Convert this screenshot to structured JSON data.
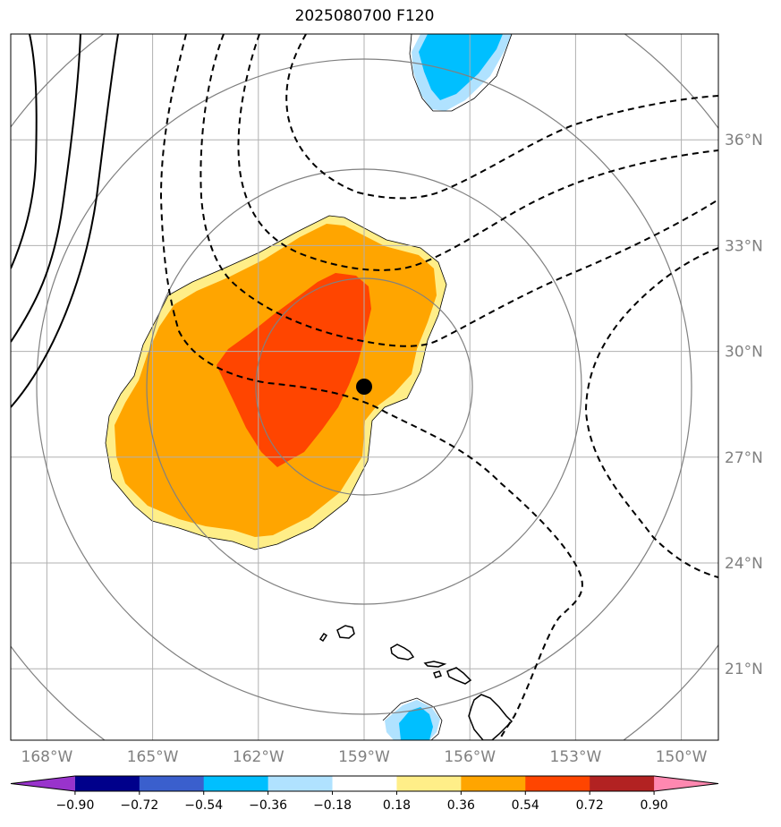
{
  "title": "2025080700 F120",
  "map": {
    "lon_range": [
      -169,
      -149
    ],
    "lat_range": [
      19,
      39
    ],
    "grid_lines": true,
    "lon_ticks": [
      {
        "value": -168,
        "label": "168°W"
      },
      {
        "value": -165,
        "label": "165°W"
      },
      {
        "value": -162,
        "label": "162°W"
      },
      {
        "value": -159,
        "label": "159°W"
      },
      {
        "value": -156,
        "label": "156°W"
      },
      {
        "value": -153,
        "label": "153°W"
      },
      {
        "value": -150,
        "label": "150°W"
      }
    ],
    "lat_ticks": [
      {
        "value": 21,
        "label": "21°N"
      },
      {
        "value": 24,
        "label": "24°N"
      },
      {
        "value": 27,
        "label": "27°N"
      },
      {
        "value": 30,
        "label": "30°N"
      },
      {
        "value": 33,
        "label": "33°N"
      },
      {
        "value": 36,
        "label": "36°N"
      }
    ],
    "center_marker": {
      "lon": -159,
      "lat": 29
    },
    "grid_color": "#b0b0b0",
    "ring_color": "#808080",
    "contour_color": "#000000"
  },
  "colorbar": {
    "colors": [
      "#9933cc",
      "#00008b",
      "#3a5fcd",
      "#00bfff",
      "#b0e2ff",
      "#ffffff",
      "#ffee88",
      "#ffa500",
      "#ff4500",
      "#b22222",
      "#ff88b0"
    ],
    "tick_labels": [
      "−0.90",
      "−0.72",
      "−0.54",
      "−0.36",
      "−0.18",
      "0.18",
      "0.36",
      "0.54",
      "0.72",
      "0.90"
    ],
    "extend": "both"
  }
}
